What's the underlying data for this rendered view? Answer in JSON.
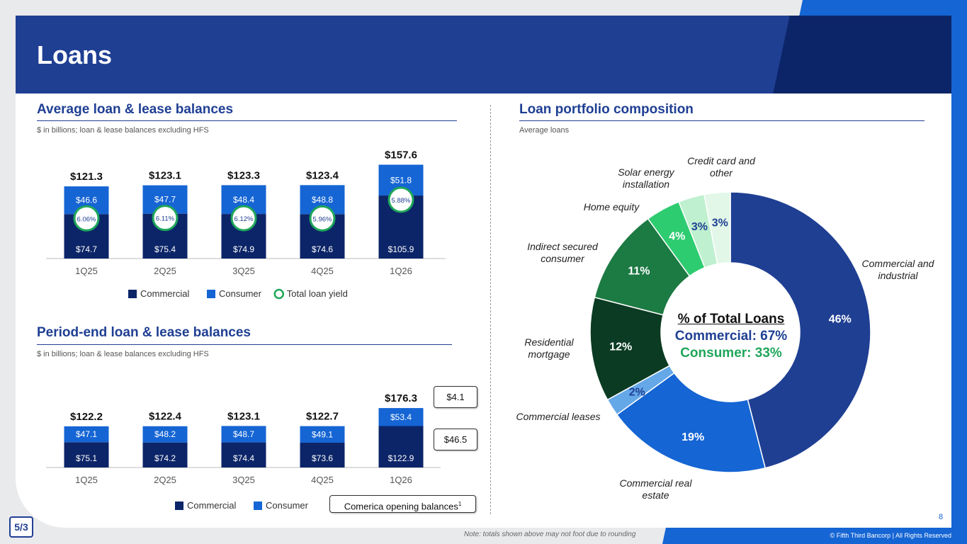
{
  "page": {
    "title": "Loans",
    "page_number": "8",
    "note": "Note: totals shown above may not foot due to rounding",
    "copyright": "© Fifth Third Bancorp | All Rights Reserved",
    "logo_icon": "fifth-third-logo-icon"
  },
  "avg_section": {
    "title": "Average loan & lease balances",
    "subtitle": "$ in billions; loan & lease balances excluding HFS"
  },
  "pe_section": {
    "title": "Period-end loan & lease balances",
    "subtitle": "$ in billions; loan & lease balances excluding HFS"
  },
  "pie_section": {
    "title": "Loan portfolio composition",
    "subtitle": "Average loans"
  },
  "colors": {
    "commercial": "#0c2568",
    "consumer": "#1565d4",
    "yield_ring": "#1fa65a",
    "header": "#1f3f93"
  },
  "chart_data": [
    {
      "type": "bar",
      "stacked": true,
      "categories": [
        "1Q25",
        "2Q25",
        "3Q25",
        "4Q25",
        "1Q26"
      ],
      "series": [
        {
          "name": "Commercial",
          "values": [
            74.7,
            75.4,
            74.9,
            74.6,
            105.9
          ],
          "labels": [
            "$74.7",
            "$75.4",
            "$74.9",
            "$74.6",
            "$105.9"
          ]
        },
        {
          "name": "Consumer",
          "values": [
            46.6,
            47.7,
            48.4,
            48.8,
            51.8
          ],
          "labels": [
            "$46.6",
            "$47.7",
            "$48.4",
            "$48.8",
            "$51.8"
          ]
        }
      ],
      "totals": [
        "$121.3",
        "$123.1",
        "$123.3",
        "$123.4",
        "$157.6"
      ],
      "yield": {
        "name": "Total loan yield",
        "labels": [
          "6.06%",
          "6.11%",
          "6.12%",
          "5.96%",
          "5.88%"
        ]
      },
      "legend": [
        "Commercial",
        "Consumer",
        "Total loan yield"
      ]
    },
    {
      "type": "bar",
      "stacked": true,
      "categories": [
        "1Q25",
        "2Q25",
        "3Q25",
        "4Q25",
        "1Q26"
      ],
      "series": [
        {
          "name": "Commercial",
          "values": [
            75.1,
            74.2,
            74.4,
            73.6,
            122.9
          ],
          "labels": [
            "$75.1",
            "$74.2",
            "$74.4",
            "$73.6",
            "$122.9"
          ]
        },
        {
          "name": "Consumer",
          "values": [
            47.1,
            48.2,
            48.7,
            49.1,
            53.4
          ],
          "labels": [
            "$47.1",
            "$48.2",
            "$48.7",
            "$49.1",
            "$53.4"
          ]
        }
      ],
      "totals": [
        "$122.2",
        "$122.4",
        "$123.1",
        "$122.7",
        "$176.3"
      ],
      "callouts": [
        "$4.1",
        "$46.5"
      ],
      "legend": [
        "Commercial",
        "Consumer"
      ],
      "legend_box": "Comerica opening balances",
      "legend_box_sup": "1"
    },
    {
      "type": "pie",
      "donut": true,
      "slices": [
        {
          "name": "Commercial and industrial",
          "value": 46,
          "label": "46%",
          "color": "#1f3f93"
        },
        {
          "name": "Commercial real estate",
          "value": 19,
          "label": "19%",
          "color": "#1565d4"
        },
        {
          "name": "Commercial leases",
          "value": 2,
          "label": "2%",
          "color": "#64a8e8"
        },
        {
          "name": "Residential mortgage",
          "value": 12,
          "label": "12%",
          "color": "#0b3b22"
        },
        {
          "name": "Indirect secured consumer",
          "value": 11,
          "label": "11%",
          "color": "#1c7a43"
        },
        {
          "name": "Home equity",
          "value": 4,
          "label": "4%",
          "color": "#2ecc71"
        },
        {
          "name": "Solar energy installation",
          "value": 3,
          "label": "3%",
          "color": "#bff0cf"
        },
        {
          "name": "Credit card and other",
          "value": 3,
          "label": "3%",
          "color": "#e2f7e8"
        }
      ],
      "center": {
        "heading": "% of Total Loans",
        "commercial": "Commercial: 67%",
        "consumer": "Consumer: 33%"
      }
    }
  ]
}
